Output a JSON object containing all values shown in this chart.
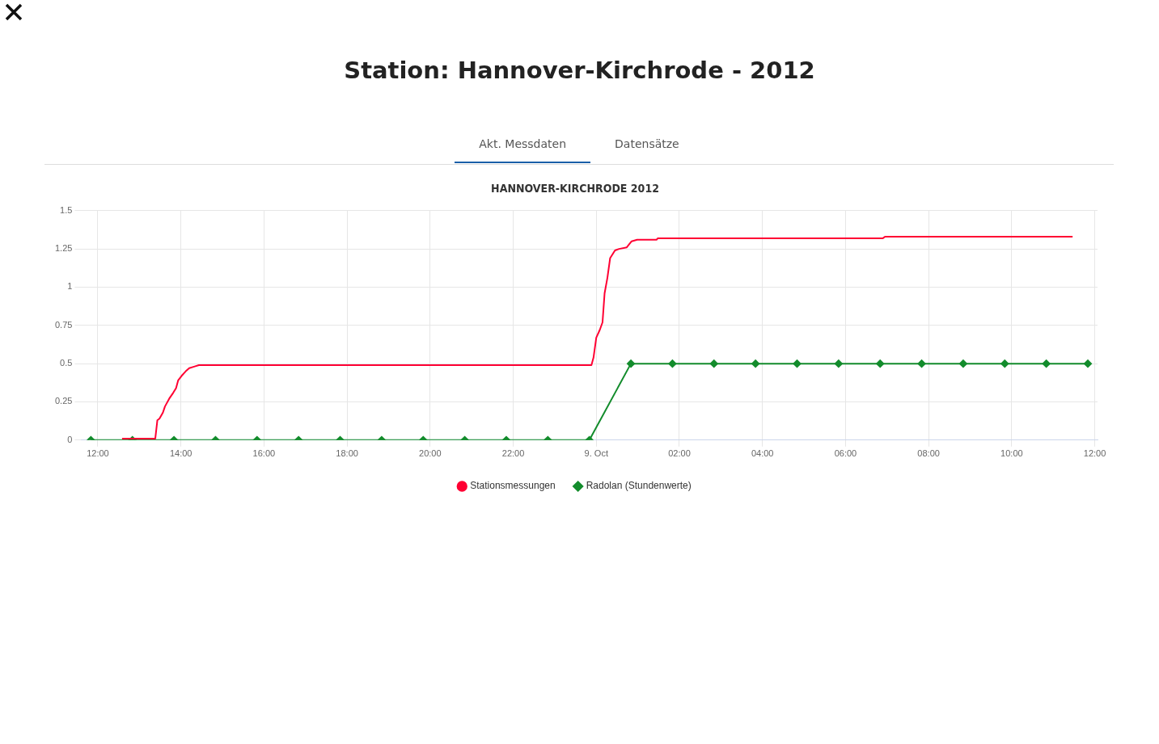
{
  "chart_data": {
    "type": "line",
    "title": "Station: Hannover-Kirchrode - 2012",
    "subtitle": "HANNOVER-KIRCHRODE 2012",
    "annotations": [
      "Akt. Messdaten",
      "Datensätze"
    ],
    "xlim": [
      "--10-08T11:36",
      "--10-09T12:04"
    ],
    "xticks": [
      {
        "value": "--10-08T12:00",
        "label": "12:00"
      },
      {
        "value": "--10-08T14:00",
        "label": "14:00"
      },
      {
        "value": "--10-08T16:00",
        "label": "16:00"
      },
      {
        "value": "--10-08T18:00",
        "label": "18:00"
      },
      {
        "value": "--10-08T20:00",
        "label": "20:00"
      },
      {
        "value": "--10-08T22:00",
        "label": "22:00"
      },
      {
        "value": "--10-09T00:00",
        "label": "9. Oct"
      },
      {
        "value": "--10-09T02:00",
        "label": "02:00"
      },
      {
        "value": "--10-09T04:00",
        "label": "04:00"
      },
      {
        "value": "--10-09T06:00",
        "label": "06:00"
      },
      {
        "value": "--10-09T08:00",
        "label": "08:00"
      },
      {
        "value": "--10-09T10:00",
        "label": "10:00"
      },
      {
        "value": "--10-09T12:00",
        "label": "12:00"
      }
    ],
    "ylim": [
      0,
      1.5
    ],
    "yticks": [
      0,
      0.25,
      0.5,
      0.75,
      1,
      1.25,
      1.5
    ],
    "grid": true,
    "legend": "bottom",
    "series": [
      {
        "name": "Stationsmessungen",
        "color": "#ff0033",
        "marker": "none",
        "x": [
          "--10-08T12:35",
          "--10-08T13:23",
          "--10-08T13:26",
          "--10-08T13:29",
          "--10-08T13:34",
          "--10-08T13:37",
          "--10-08T13:43",
          "--10-08T13:49",
          "--10-08T13:53",
          "--10-08T13:56",
          "--10-08T14:01",
          "--10-08T14:07",
          "--10-08T14:12",
          "--10-08T14:19",
          "--10-08T14:26",
          "--10-08T23:53",
          "--10-08T23:56",
          "--10-09T00:00",
          "--10-09T00:05",
          "--10-09T00:09",
          "--10-09T00:12",
          "--10-09T00:16",
          "--10-09T00:20",
          "--10-09T00:27",
          "--10-09T00:33",
          "--10-09T00:44",
          "--10-09T00:51",
          "--10-09T00:59",
          "--10-09T01:05",
          "--10-09T01:27",
          "--10-09T01:29",
          "--10-09T06:54",
          "--10-09T06:57",
          "--10-09T11:28"
        ],
        "values": [
          0.01,
          0.01,
          0.13,
          0.14,
          0.18,
          0.22,
          0.27,
          0.31,
          0.34,
          0.39,
          0.42,
          0.45,
          0.47,
          0.48,
          0.49,
          0.49,
          0.54,
          0.67,
          0.72,
          0.77,
          0.96,
          1.06,
          1.19,
          1.24,
          1.25,
          1.26,
          1.3,
          1.31,
          1.31,
          1.31,
          1.32,
          1.32,
          1.33,
          1.33
        ]
      },
      {
        "name": "Radolan (Stundenwerte)",
        "color": "#138c2c",
        "marker": "diamond",
        "x": [
          "--10-08T11:50",
          "--10-08T12:50",
          "--10-08T13:50",
          "--10-08T14:50",
          "--10-08T15:50",
          "--10-08T16:50",
          "--10-08T17:50",
          "--10-08T18:50",
          "--10-08T19:50",
          "--10-08T20:50",
          "--10-08T21:50",
          "--10-08T22:50",
          "--10-08T23:50",
          "--10-09T00:50",
          "--10-09T01:50",
          "--10-09T02:50",
          "--10-09T03:50",
          "--10-09T04:50",
          "--10-09T05:50",
          "--10-09T06:50",
          "--10-09T07:50",
          "--10-09T08:50",
          "--10-09T09:50",
          "--10-09T10:50",
          "--10-09T11:50"
        ],
        "values": [
          0,
          0,
          0,
          0,
          0,
          0,
          0,
          0,
          0,
          0,
          0,
          0,
          0,
          0.5,
          0.5,
          0.5,
          0.5,
          0.5,
          0.5,
          0.5,
          0.5,
          0.5,
          0.5,
          0.5,
          0.5
        ]
      }
    ]
  }
}
